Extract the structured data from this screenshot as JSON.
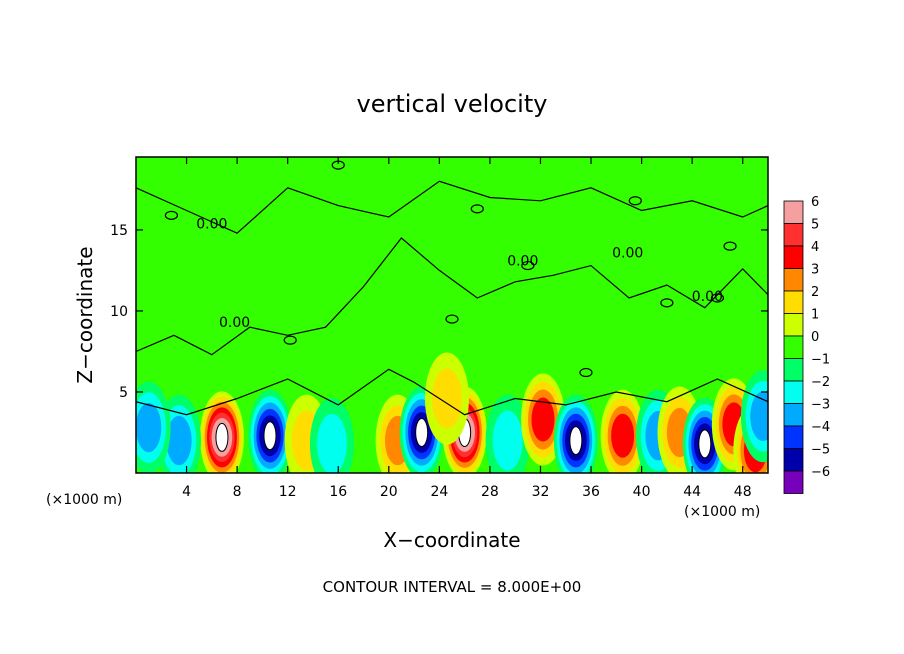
{
  "chart_data": {
    "type": "heatmap",
    "title": "vertical velocity",
    "xlabel": "X−coordinate",
    "ylabel": "Z−coordinate",
    "x_unit": "(×1000 m)",
    "x_unit_right": "(×1000 m)",
    "xlim": [
      0,
      50
    ],
    "ylim": [
      0,
      19.5
    ],
    "x_ticks": [
      "4",
      "8",
      "12",
      "16",
      "20",
      "24",
      "28",
      "32",
      "36",
      "40",
      "44",
      "48"
    ],
    "x_tick_values": [
      4,
      8,
      12,
      16,
      20,
      24,
      28,
      32,
      36,
      40,
      44,
      48
    ],
    "y_ticks": [
      "5",
      "10",
      "15"
    ],
    "y_tick_values": [
      5,
      10,
      15
    ],
    "colorbar": {
      "labels": [
        "6",
        "5",
        "4",
        "3",
        "2",
        "1",
        "0",
        "−1",
        "−2",
        "−3",
        "−4",
        "−5",
        "−6"
      ],
      "values": [
        6,
        5,
        4,
        3,
        2,
        1,
        0,
        -1,
        -2,
        -3,
        -4,
        -5,
        -6
      ],
      "colors": [
        "#f4a0a0",
        "#ff3030",
        "#ff0000",
        "#ff8800",
        "#ffdd00",
        "#ccff00",
        "#33ff00",
        "#00ff66",
        "#00ffee",
        "#00aaff",
        "#0033ff",
        "#0000aa",
        "#7700bb"
      ]
    },
    "contour_label": "0.00",
    "contour_interval_text": "CONTOUR INTERVAL =  8.000E+00",
    "features": [
      {
        "x": 6.8,
        "z": 2.2,
        "w": 5.5
      },
      {
        "x": 10.6,
        "z": 2.3,
        "w": -5.0
      },
      {
        "x": 3.4,
        "z": 2.0,
        "w": -2.8
      },
      {
        "x": 1.0,
        "z": 2.8,
        "w": -2.5
      },
      {
        "x": 13.5,
        "z": 2.0,
        "w": 1.6
      },
      {
        "x": 15.5,
        "z": 1.8,
        "w": -2.0
      },
      {
        "x": 20.7,
        "z": 2.0,
        "w": 2.5
      },
      {
        "x": 22.6,
        "z": 2.5,
        "w": -5.2
      },
      {
        "x": 26.0,
        "z": 2.5,
        "w": 5.5
      },
      {
        "x": 24.6,
        "z": 4.6,
        "w": 2.2
      },
      {
        "x": 29.4,
        "z": 2.0,
        "w": -2.0
      },
      {
        "x": 32.2,
        "z": 3.3,
        "w": 4.2
      },
      {
        "x": 34.8,
        "z": 2.0,
        "w": -5.2
      },
      {
        "x": 38.5,
        "z": 2.3,
        "w": 4.0
      },
      {
        "x": 41.3,
        "z": 2.3,
        "w": -2.6
      },
      {
        "x": 43.0,
        "z": 2.5,
        "w": 2.6
      },
      {
        "x": 45.0,
        "z": 1.8,
        "w": -5.0
      },
      {
        "x": 47.3,
        "z": 3.0,
        "w": 4.0
      },
      {
        "x": 49.0,
        "z": 1.4,
        "w": 3.5
      },
      {
        "x": 49.6,
        "z": 3.5,
        "w": -2.5
      }
    ]
  }
}
